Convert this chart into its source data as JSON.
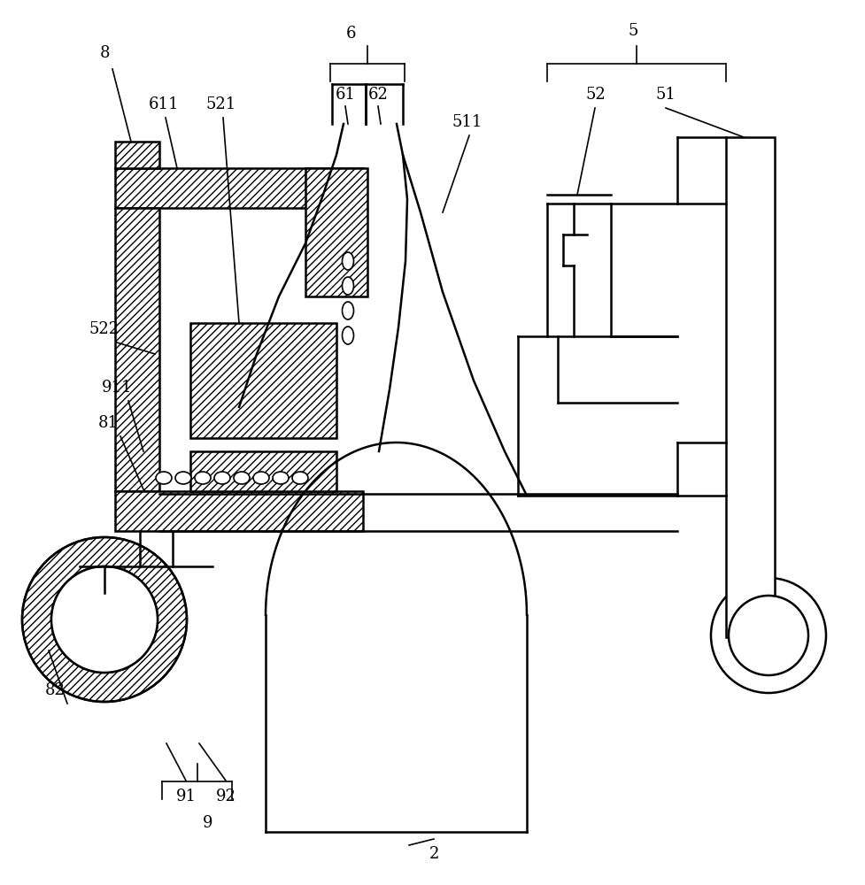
{
  "bg_color": "#ffffff",
  "line_color": "#000000",
  "label_fontsize": 13,
  "label_color": "#000000"
}
